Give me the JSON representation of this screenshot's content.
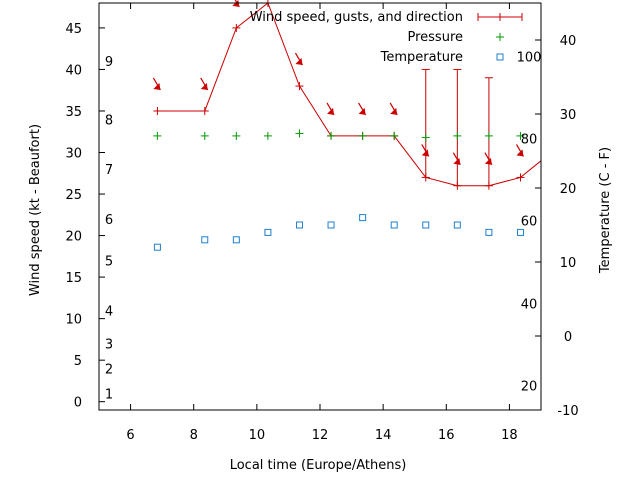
{
  "chart_data": {
    "type": "line",
    "xlabel": "Local time (Europe/Athens)",
    "ylabel_left": "Wind speed (kt - Beaufort)",
    "ylabel_right": "Temperature (C - F)",
    "xlim": [
      5,
      19
    ],
    "ylim_left": [
      -1,
      48
    ],
    "ylim_right": [
      -10,
      45
    ],
    "x_ticks": [
      6,
      8,
      10,
      12,
      14,
      16,
      18
    ],
    "y_ticks_left": [
      0,
      5,
      10,
      15,
      20,
      25,
      30,
      35,
      40,
      45
    ],
    "y_ticks_right": [
      -10,
      0,
      10,
      20,
      30,
      40
    ],
    "beaufort_labels": [
      {
        "text": "1",
        "y": 1
      },
      {
        "text": "2",
        "y": 4
      },
      {
        "text": "3",
        "y": 7
      },
      {
        "text": "4",
        "y": 11
      },
      {
        "text": "5",
        "y": 17
      },
      {
        "text": "6",
        "y": 22
      },
      {
        "text": "7",
        "y": 28
      },
      {
        "text": "8",
        "y": 34
      },
      {
        "text": "9",
        "y": 41
      }
    ],
    "fahrenheit_labels": [
      {
        "text": "20",
        "y": -6.7
      },
      {
        "text": "40",
        "y": 4.4
      },
      {
        "text": "60",
        "y": 15.6
      },
      {
        "text": "80",
        "y": 26.7
      },
      {
        "text": "100",
        "y": 37.8
      }
    ],
    "legend": [
      "Wind speed, gusts, and direction",
      "Pressure",
      "Temperature"
    ],
    "legend_position": "top-right",
    "series": [
      {
        "name": "Wind speed, gusts, and direction",
        "color": "#cc0000",
        "x": [
          6.85,
          8.35,
          9.35,
          10.35,
          11.35,
          12.35,
          13.35,
          14.35,
          15.35,
          16.35,
          17.35,
          18.35
        ],
        "values": [
          35,
          35,
          45,
          48,
          38,
          32,
          32,
          32,
          27,
          26,
          26,
          27
        ],
        "gusts": [
          null,
          null,
          null,
          null,
          null,
          null,
          null,
          null,
          40,
          40,
          39,
          null
        ],
        "direction_arrows": true
      },
      {
        "name": "Pressure",
        "color": "#009900",
        "x": [
          6.85,
          8.35,
          9.35,
          10.35,
          11.35,
          12.35,
          13.35,
          14.35,
          15.35,
          16.35,
          17.35,
          18.35
        ],
        "values": [
          32,
          32,
          32,
          32,
          32.3,
          32,
          32,
          32,
          31.8,
          32,
          32,
          32
        ]
      },
      {
        "name": "Temperature",
        "color": "#1f7fcf",
        "x": [
          6.85,
          8.35,
          9.35,
          10.35,
          11.35,
          12.35,
          13.35,
          14.35,
          15.35,
          16.35,
          17.35,
          18.35
        ],
        "values": [
          12,
          13,
          13,
          14,
          15,
          15,
          16,
          15,
          15,
          15,
          14,
          14
        ]
      }
    ]
  }
}
